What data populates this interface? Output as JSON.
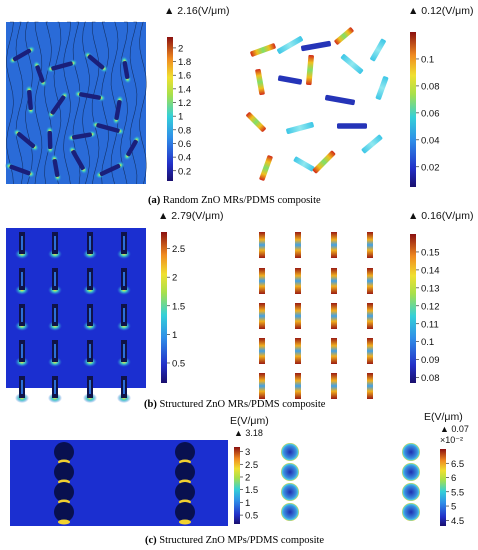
{
  "chart_data": [
    {
      "type": "heatmap",
      "id": "a",
      "caption_label": "(a)",
      "caption_text": " Random ZnO MRs/PDMS composite",
      "panels": [
        {
          "title": "▲ 2.16(V/μm)",
          "max": 2.16,
          "ticks": [
            "2",
            "1.8",
            "1.6",
            "1.4",
            "1.2",
            "1",
            "0.8",
            "0.6",
            "0.4",
            "0.2"
          ],
          "tick_values": [
            2,
            1.8,
            1.6,
            1.4,
            1.2,
            1,
            0.8,
            0.6,
            0.4,
            0.2
          ],
          "min": 0.05
        },
        {
          "title": "▲ 0.12(V/μm)",
          "max": 0.12,
          "ticks": [
            "0.1",
            "0.08",
            "0.06",
            "0.04",
            "0.02"
          ],
          "tick_values": [
            0.1,
            0.08,
            0.06,
            0.04,
            0.02
          ],
          "min": 0.005
        }
      ]
    },
    {
      "type": "heatmap",
      "id": "b",
      "caption_label": "(b)",
      "caption_text": " Structured ZnO MRs/PDMS composite",
      "panels": [
        {
          "title": "▲ 2.79(V/μm)",
          "max": 2.79,
          "ticks": [
            "2.5",
            "2",
            "1.5",
            "1",
            "0.5"
          ],
          "tick_values": [
            2.5,
            2,
            1.5,
            1,
            0.5
          ],
          "min": 0.15
        },
        {
          "title": "▲ 0.16(V/μm)",
          "max": 0.16,
          "ticks": [
            "0.15",
            "0.14",
            "0.13",
            "0.12",
            "0.11",
            "0.1",
            "0.09",
            "0.08"
          ],
          "tick_values": [
            0.15,
            0.14,
            0.13,
            0.12,
            0.11,
            0.1,
            0.09,
            0.08
          ],
          "min": 0.077
        }
      ]
    },
    {
      "type": "heatmap",
      "id": "c",
      "caption_label": "(c)",
      "caption_text": " Structured ZnO MPs/PDMS composite",
      "panels": [
        {
          "title": "E(V/μm)",
          "max_label": "▲ 3.18",
          "max": 3.18,
          "ticks": [
            "3",
            "2.5",
            "2",
            "1.5",
            "1",
            "0.5"
          ],
          "tick_values": [
            3,
            2.5,
            2,
            1.5,
            1,
            0.5
          ],
          "min": 0.15
        },
        {
          "title": "E(V/μm)",
          "max_label": "▲ 0.07",
          "exponent": "×10⁻²",
          "max": 7,
          "ticks": [
            "6.5",
            "6",
            "5.5",
            "5",
            "4.5"
          ],
          "tick_values": [
            6.5,
            6,
            5.5,
            5,
            4.5
          ],
          "min": 4.3
        }
      ]
    }
  ]
}
